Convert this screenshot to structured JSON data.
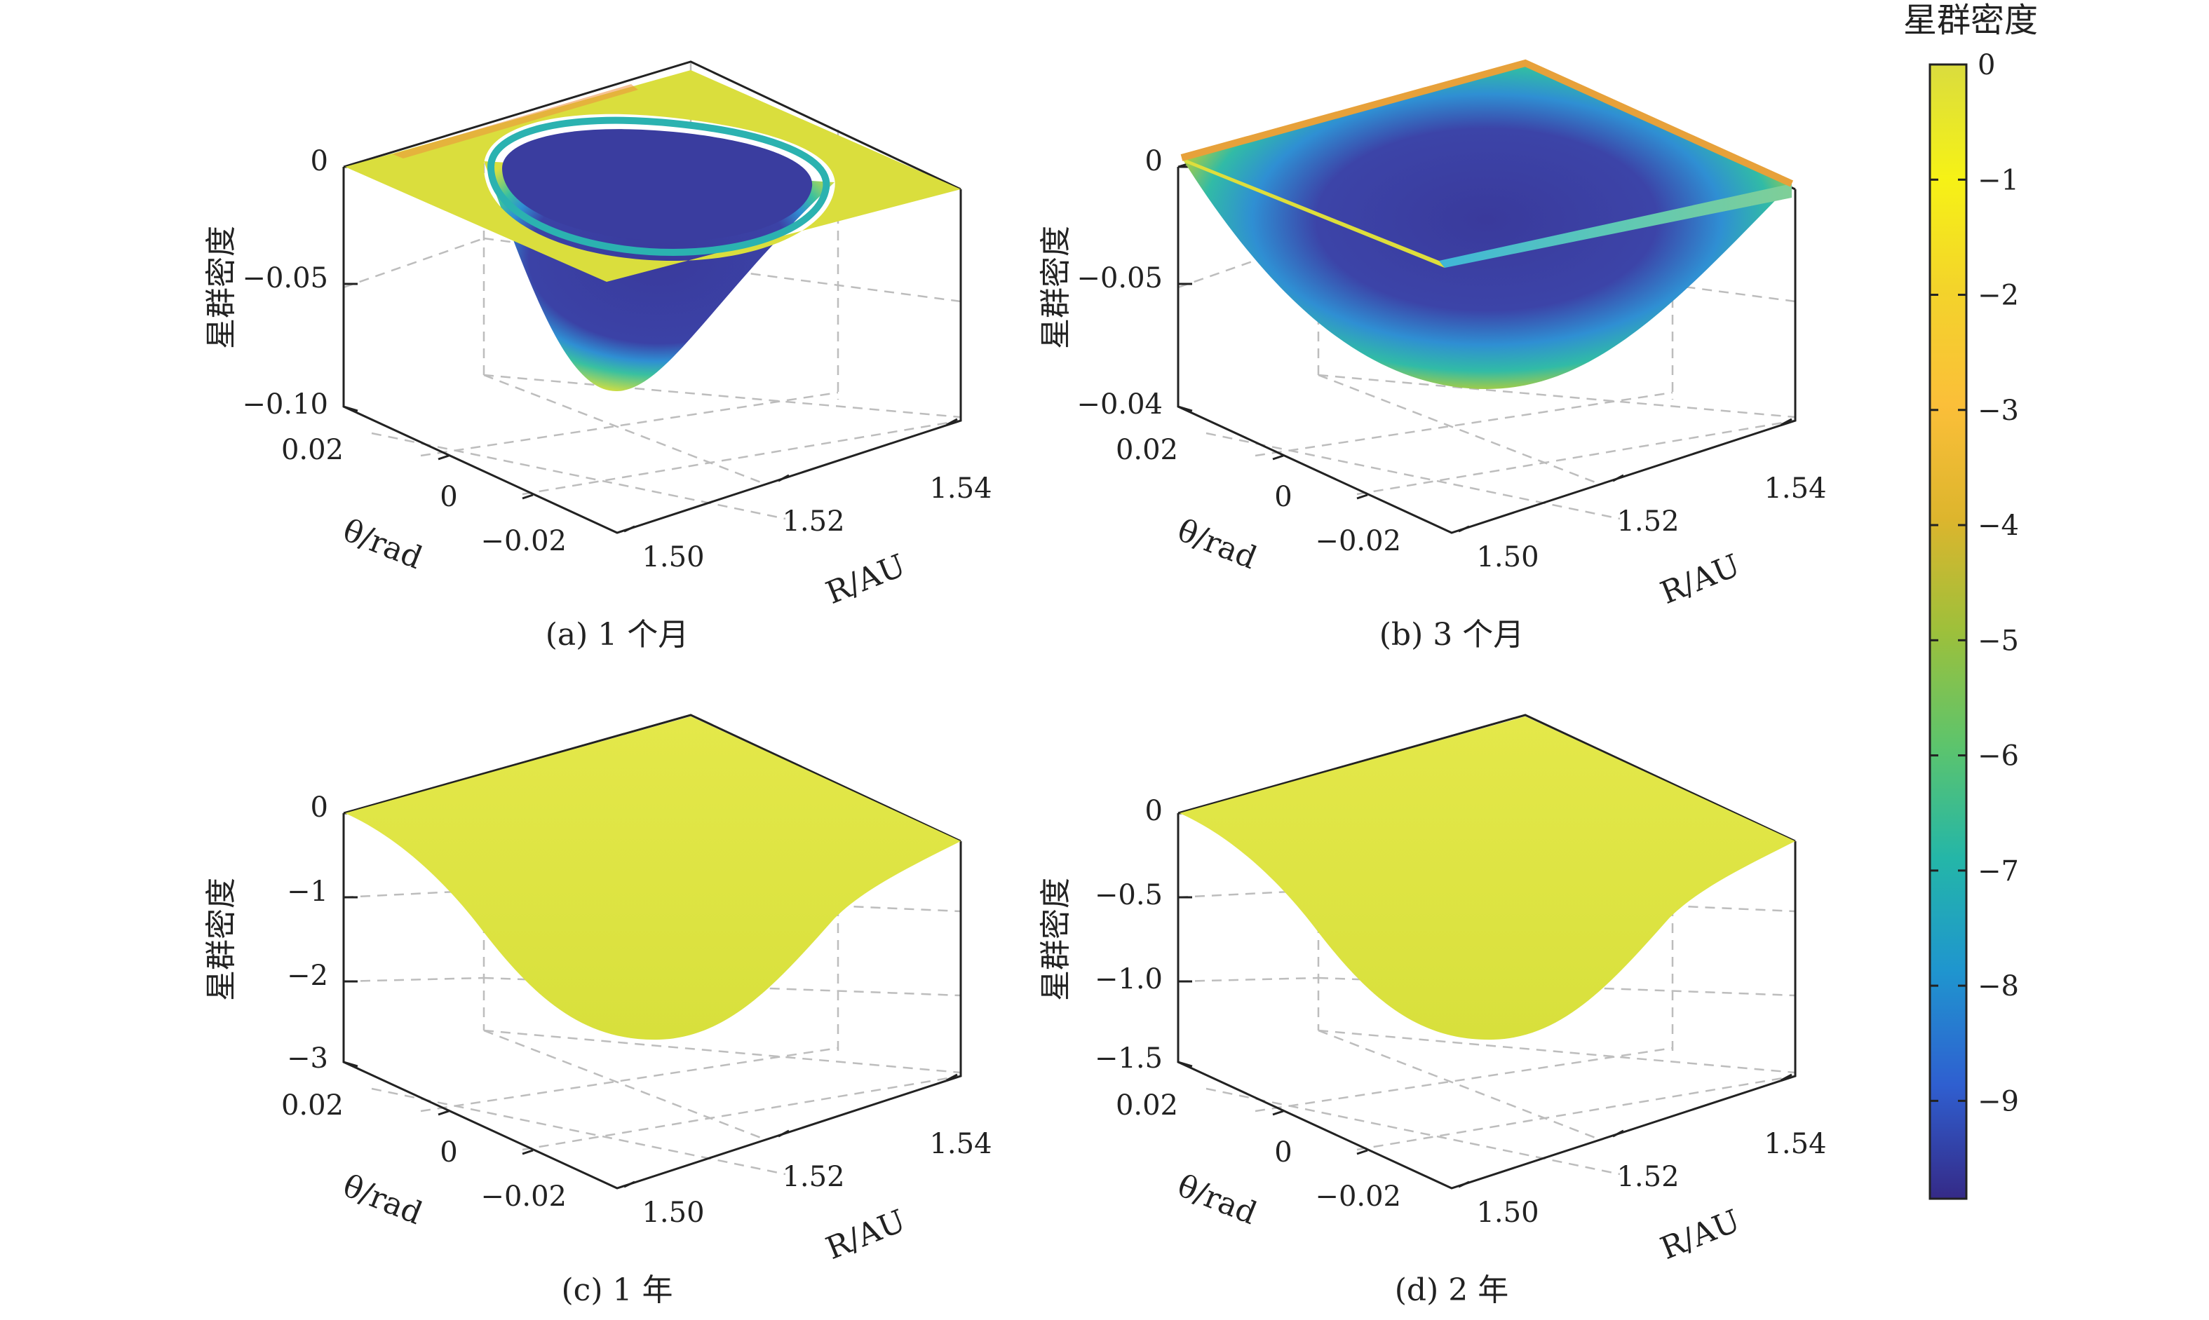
{
  "colorbar": {
    "title": "星群密度",
    "ticks": [
      "0",
      "−1",
      "−2",
      "−3",
      "−4",
      "−5",
      "−6",
      "−7",
      "−8",
      "−9"
    ],
    "range": [
      -9.85,
      0
    ],
    "colors": [
      "#352a87",
      "#2f5fd0",
      "#1f95cf",
      "#24b6a8",
      "#5dc46c",
      "#9dc03b",
      "#ddb52d",
      "#fbbf39",
      "#f3d32b",
      "#f6f216",
      "#dadc3e"
    ]
  },
  "panels": [
    {
      "caption": "(a) 1 个月",
      "zlabel": "星群密度",
      "z_ticks": [
        "0",
        "−0.05",
        "−0.10"
      ],
      "theta_label": "θ/rad",
      "theta_ticks": [
        "0.02",
        "0",
        "−0.02"
      ],
      "r_label": "R/AU",
      "r_ticks": [
        "1.50",
        "1.52",
        "1.54"
      ]
    },
    {
      "caption": "(b) 3 个月",
      "zlabel": "星群密度",
      "z_ticks": [
        "0",
        "−0.05",
        "−0.04"
      ],
      "theta_label": "θ/rad",
      "theta_ticks": [
        "0.02",
        "0",
        "−0.02"
      ],
      "r_label": "R/AU",
      "r_ticks": [
        "1.50",
        "1.52",
        "1.54"
      ]
    },
    {
      "caption": "(c) 1 年",
      "zlabel": "星群密度",
      "z_ticks": [
        "0",
        "−1",
        "−2",
        "−3"
      ],
      "theta_label": "θ/rad",
      "theta_ticks": [
        "0.02",
        "0",
        "−0.02"
      ],
      "r_label": "R/AU",
      "r_ticks": [
        "1.50",
        "1.52",
        "1.54"
      ]
    },
    {
      "caption": "(d) 2 年",
      "zlabel": "星群密度",
      "z_ticks": [
        "0",
        "−0.5",
        "−1.0",
        "−1.5"
      ],
      "theta_label": "θ/rad",
      "theta_ticks": [
        "0.02",
        "0",
        "−0.02"
      ],
      "r_label": "R/AU",
      "r_ticks": [
        "1.50",
        "1.52",
        "1.54"
      ]
    }
  ],
  "chart_data": [
    {
      "type": "surface",
      "caption": "(a) 1 个月",
      "x": {
        "label": "R/AU",
        "range": [
          1.49,
          1.55
        ],
        "ticks": [
          1.5,
          1.52,
          1.54
        ]
      },
      "y": {
        "label": "θ/rad",
        "range": [
          -0.03,
          0.03
        ],
        "ticks": [
          -0.02,
          0,
          0.02
        ]
      },
      "z": {
        "label": "星群密度",
        "tick_labels": [
          "0",
          "−0.05",
          "−0.10"
        ],
        "range": [
          -0.1,
          0
        ]
      },
      "surface": "bowl-shaped depression centered near R≈1.52 AU, θ≈0; deepest ≈ −0.09; flat rim ≈ 0",
      "colormap": "parula"
    },
    {
      "type": "surface",
      "caption": "(b) 3 个月",
      "x": {
        "label": "R/AU",
        "range": [
          1.49,
          1.55
        ],
        "ticks": [
          1.5,
          1.52,
          1.54
        ]
      },
      "y": {
        "label": "θ/rad",
        "range": [
          -0.03,
          0.03
        ],
        "ticks": [
          -0.02,
          0,
          0.02
        ]
      },
      "z": {
        "label": "星群密度",
        "tick_labels": [
          "0",
          "−0.05",
          "−0.04"
        ]
      },
      "surface": "wider bowl-shaped depression centered near R≈1.52 AU, θ≈0",
      "colormap": "parula"
    },
    {
      "type": "surface",
      "caption": "(c) 1 年",
      "x": {
        "label": "R/AU",
        "range": [
          1.49,
          1.55
        ],
        "ticks": [
          1.5,
          1.52,
          1.54
        ]
      },
      "y": {
        "label": "θ/rad",
        "range": [
          -0.03,
          0.03
        ],
        "ticks": [
          -0.02,
          0,
          0.02
        ]
      },
      "z": {
        "label": "星群密度",
        "tick_labels": [
          "0",
          "−1",
          "−2",
          "−3"
        ],
        "range": [
          -3,
          0
        ]
      },
      "surface": "smooth bowl, minimum ≈ −2.7 at center",
      "colormap": "parula"
    },
    {
      "type": "surface",
      "caption": "(d) 2 年",
      "x": {
        "label": "R/AU",
        "range": [
          1.49,
          1.55
        ],
        "ticks": [
          1.5,
          1.52,
          1.54
        ]
      },
      "y": {
        "label": "θ/rad",
        "range": [
          -0.03,
          0.03
        ],
        "ticks": [
          -0.02,
          0,
          0.02
        ]
      },
      "z": {
        "label": "星群密度",
        "tick_labels": [
          "0",
          "−0.5",
          "−1.0",
          "−1.5"
        ],
        "range": [
          -1.5,
          0
        ]
      },
      "surface": "smooth bowl, minimum ≈ −1.3 at center",
      "colormap": "parula"
    }
  ]
}
